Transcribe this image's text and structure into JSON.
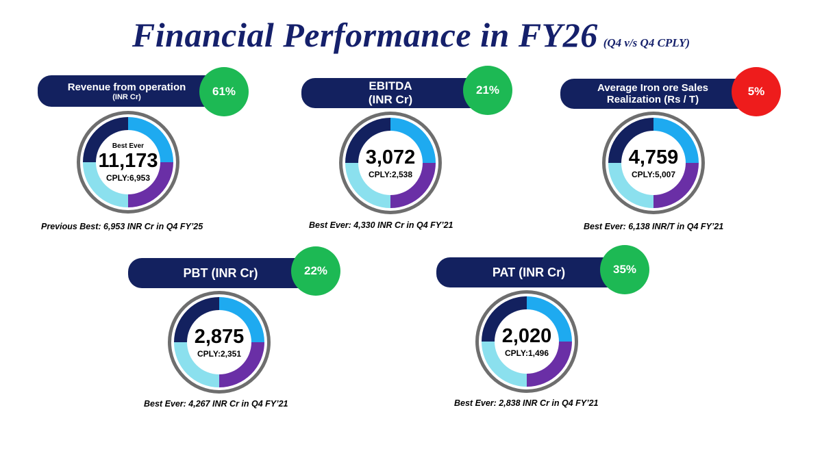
{
  "title": {
    "main": "Financial Performance in FY26",
    "sub": "(Q4 v/s Q4 CPLY)"
  },
  "colors": {
    "navy": "#13215f",
    "growth_green": "#1db954",
    "decline_red": "#ee1c1c",
    "ring_blue": "#1eaaf0",
    "ring_purple": "#6a2fa6",
    "ring_light": "#8be0ee",
    "ring_border": "#6e6e6e"
  },
  "cards": [
    {
      "label": "Revenue from operation",
      "unit": "(INR Cr)",
      "change": "61%",
      "change_color": "green",
      "tag": "Best Ever",
      "value": "11,173",
      "cply": "CPLY:6,953",
      "note": "Previous Best: 6,953 INR Cr in Q4 FY’25"
    },
    {
      "label": "EBITDA",
      "unit": "(INR Cr)",
      "change": "21%",
      "change_color": "green",
      "value": "3,072",
      "cply": "CPLY:2,538",
      "note": "Best Ever: 4,330 INR Cr in Q4 FY’21"
    },
    {
      "label": "Average Iron ore Sales",
      "unit": "Realization (Rs / T)",
      "change": "5%",
      "change_color": "red",
      "value": "4,759",
      "cply": "CPLY:5,007",
      "note": "Best Ever: 6,138 INR/T in Q4 FY’21"
    },
    {
      "label": "PBT (INR Cr)",
      "change": "22%",
      "change_color": "green",
      "value": "2,875",
      "cply": "CPLY:2,351",
      "note": "Best Ever: 4,267 INR Cr in Q4 FY’21"
    },
    {
      "label": "PAT (INR Cr)",
      "change": "35%",
      "change_color": "green",
      "value": "2,020",
      "cply": "CPLY:1,496",
      "note": "Best Ever: 2,838 INR Cr in Q4 FY’21"
    }
  ]
}
